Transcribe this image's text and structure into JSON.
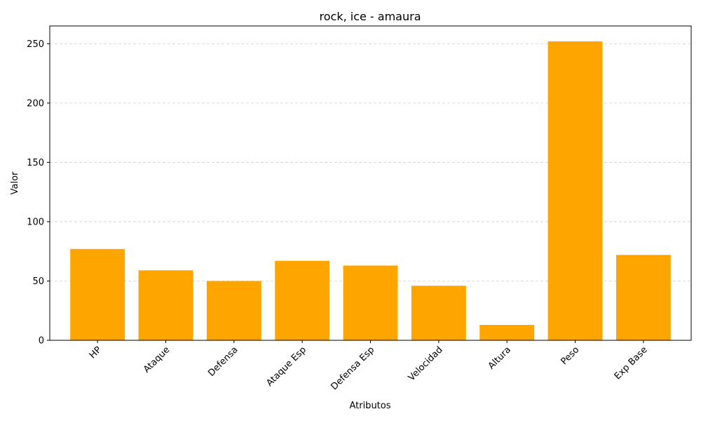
{
  "chart_data": {
    "type": "bar",
    "title": "rock, ice - amaura",
    "xlabel": "Atributos",
    "ylabel": "Valor",
    "categories": [
      "HP",
      "Ataque",
      "Defensa",
      "Ataque Esp",
      "Defensa Esp",
      "Velocidad",
      "Altura",
      "Peso",
      "Exp Base"
    ],
    "values": [
      77,
      59,
      50,
      67,
      63,
      46,
      13,
      252,
      72
    ],
    "ylim": [
      0,
      265
    ],
    "yticks": [
      0,
      50,
      100,
      150,
      200,
      250
    ],
    "grid": "y-dashed",
    "bar_color": "#ffa500",
    "x_tick_rotation_deg": 45
  }
}
